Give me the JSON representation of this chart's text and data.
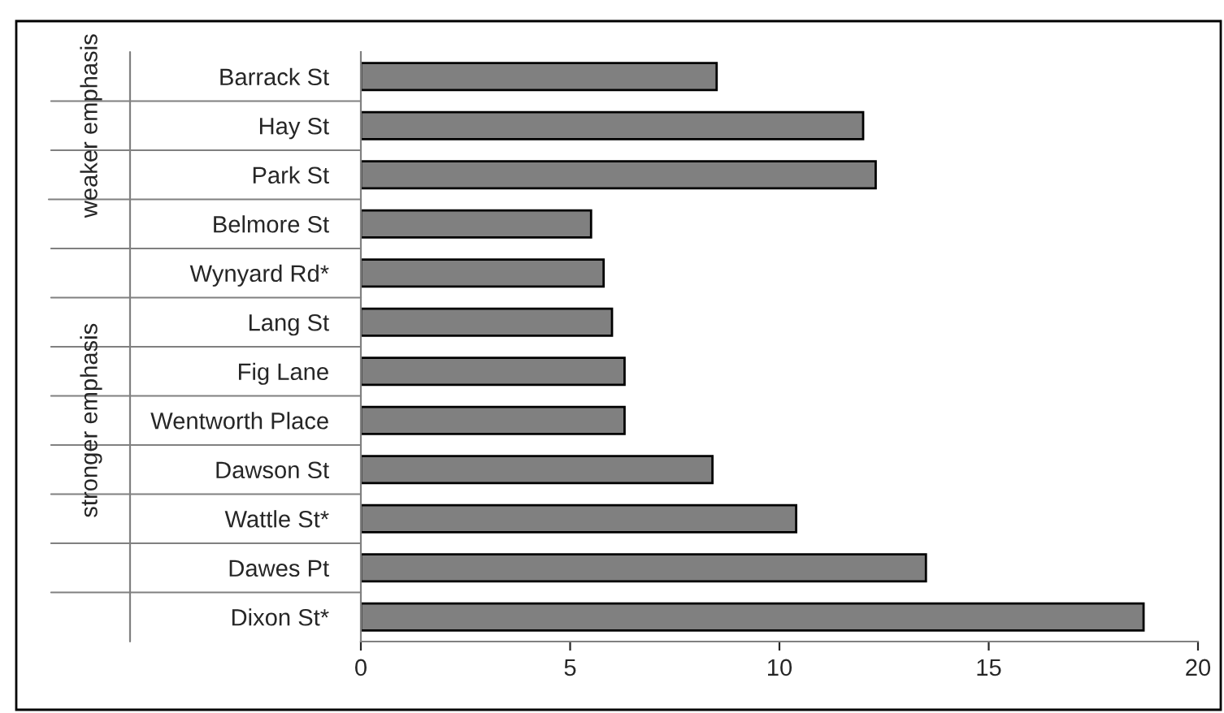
{
  "chart_data": {
    "type": "bar",
    "orientation": "horizontal",
    "categories": [
      "Barrack St",
      "Hay St",
      "Park St",
      "Belmore St",
      "Wynyard Rd*",
      "Lang St",
      "Fig Lane",
      "Wentworth Place",
      "Dawson St",
      "Wattle St*",
      "Dawes Pt",
      "Dixon St*"
    ],
    "values": [
      8.5,
      12.0,
      12.3,
      5.5,
      5.8,
      6.0,
      6.3,
      6.3,
      8.4,
      10.4,
      13.5,
      18.7
    ],
    "color": "#808080",
    "xlim": [
      0,
      20
    ],
    "xticks": [
      0,
      5,
      10,
      15,
      20
    ],
    "grid": false,
    "annotations": [
      "weaker emphasis",
      "stronger emphasis"
    ]
  }
}
